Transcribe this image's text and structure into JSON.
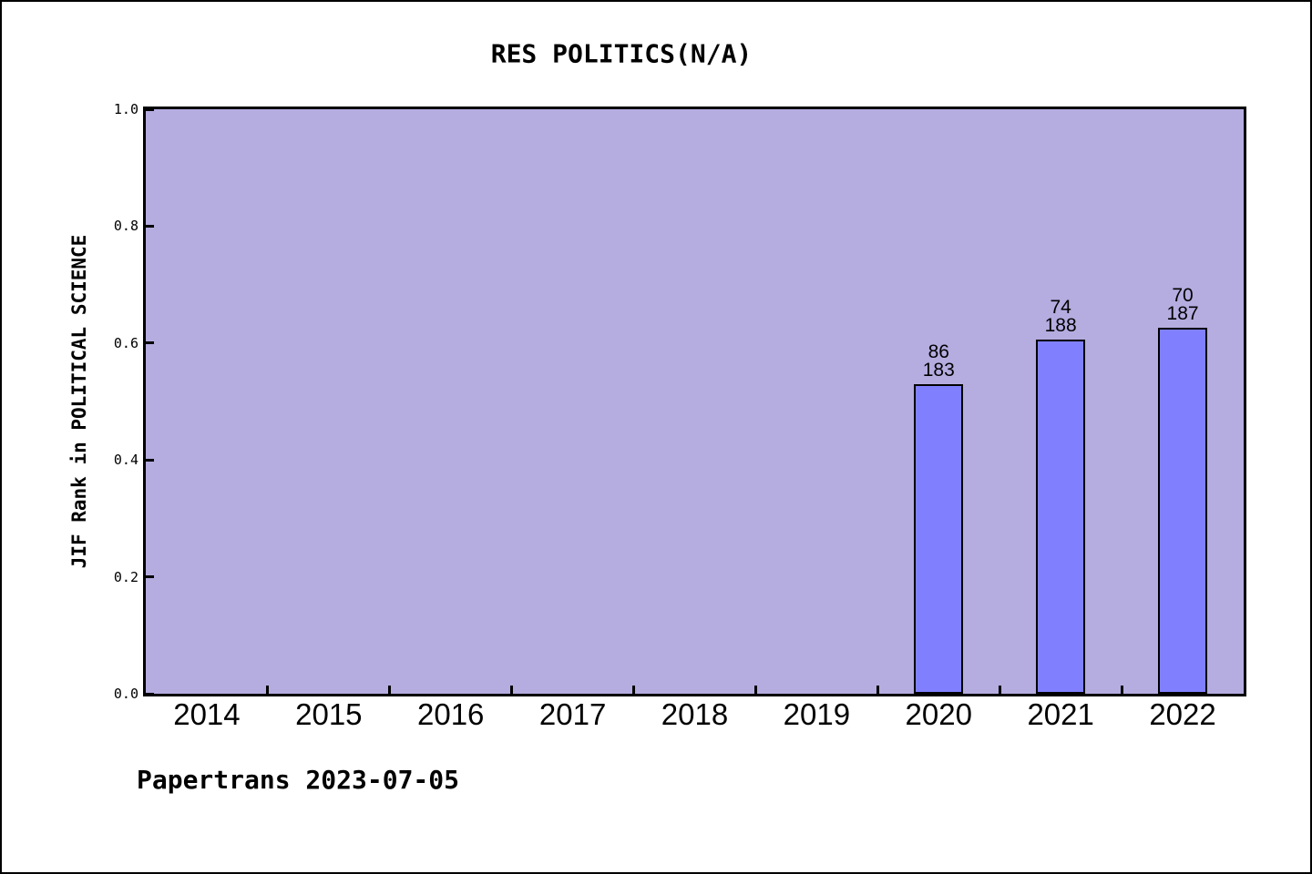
{
  "page": {
    "caption": "Papertrans 2023-07-05"
  },
  "chart_data": {
    "type": "bar",
    "title": "RES POLITICS(N/A)",
    "xlabel": "",
    "ylabel": "JIF Rank in POLITICAL SCIENCE",
    "ylim": [
      0.0,
      1.0
    ],
    "yticks": [
      0.0,
      0.2,
      0.4,
      0.6,
      0.8,
      1.0
    ],
    "categories": [
      "2014",
      "2015",
      "2016",
      "2017",
      "2018",
      "2019",
      "2020",
      "2021",
      "2022"
    ],
    "grid": false,
    "legend_position": "none",
    "bars": [
      {
        "year": "2020",
        "rank": 86,
        "total": 183,
        "value": 0.53
      },
      {
        "year": "2021",
        "rank": 74,
        "total": 188,
        "value": 0.606
      },
      {
        "year": "2022",
        "rank": 70,
        "total": 187,
        "value": 0.626
      }
    ],
    "colors": {
      "bar_fill": "#8080ff",
      "bar_edge": "#000000",
      "plot_background": "#b5ace0",
      "axis_frame": "#000000",
      "page_background": "#ffffff",
      "text": "#000000"
    }
  }
}
